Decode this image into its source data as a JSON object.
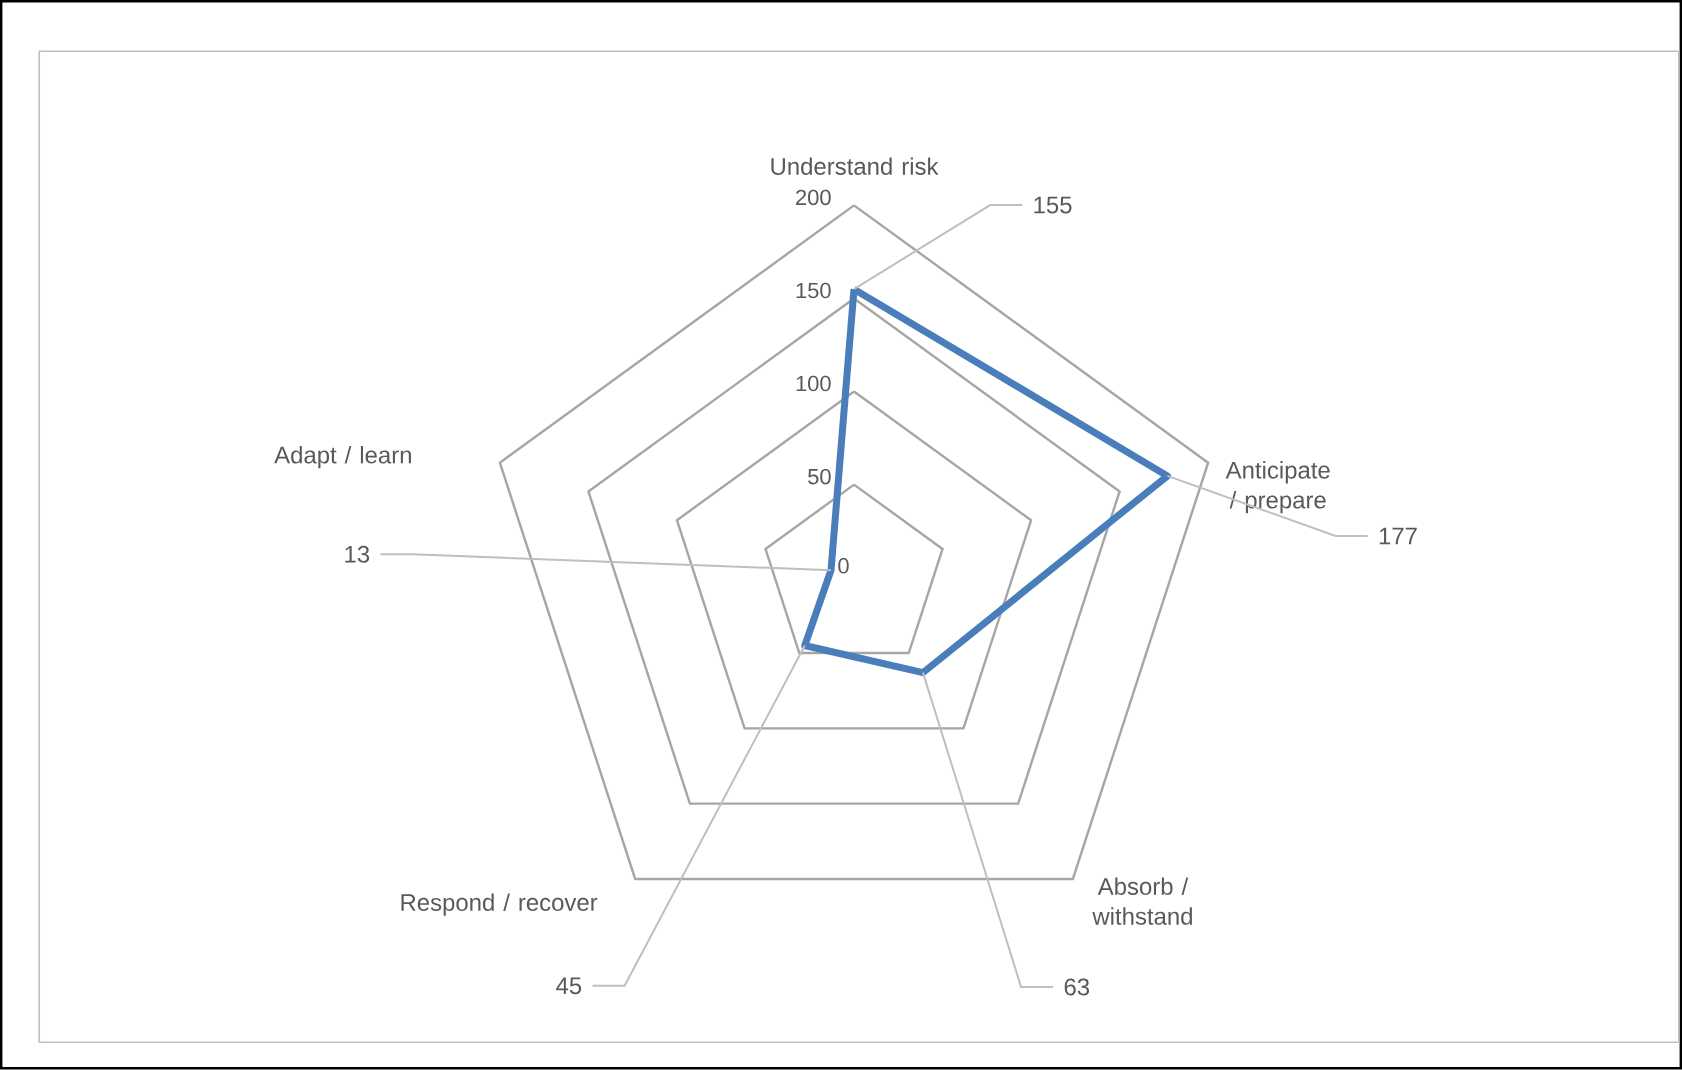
{
  "chart_data": {
    "type": "radar",
    "categories": [
      "Understand risk",
      "Anticipate / prepare",
      "Absorb / withstand",
      "Respond / recover",
      "Adapt / learn"
    ],
    "series": [
      {
        "color": "#4a7ebb",
        "values": [
          155,
          177,
          63,
          45,
          13
        ],
        "value_labels": [
          "155",
          "177",
          "63",
          "45",
          "13"
        ]
      }
    ],
    "ylim": [
      0,
      200
    ],
    "yticks": [
      0,
      50,
      100,
      150,
      200
    ],
    "grid": true
  }
}
